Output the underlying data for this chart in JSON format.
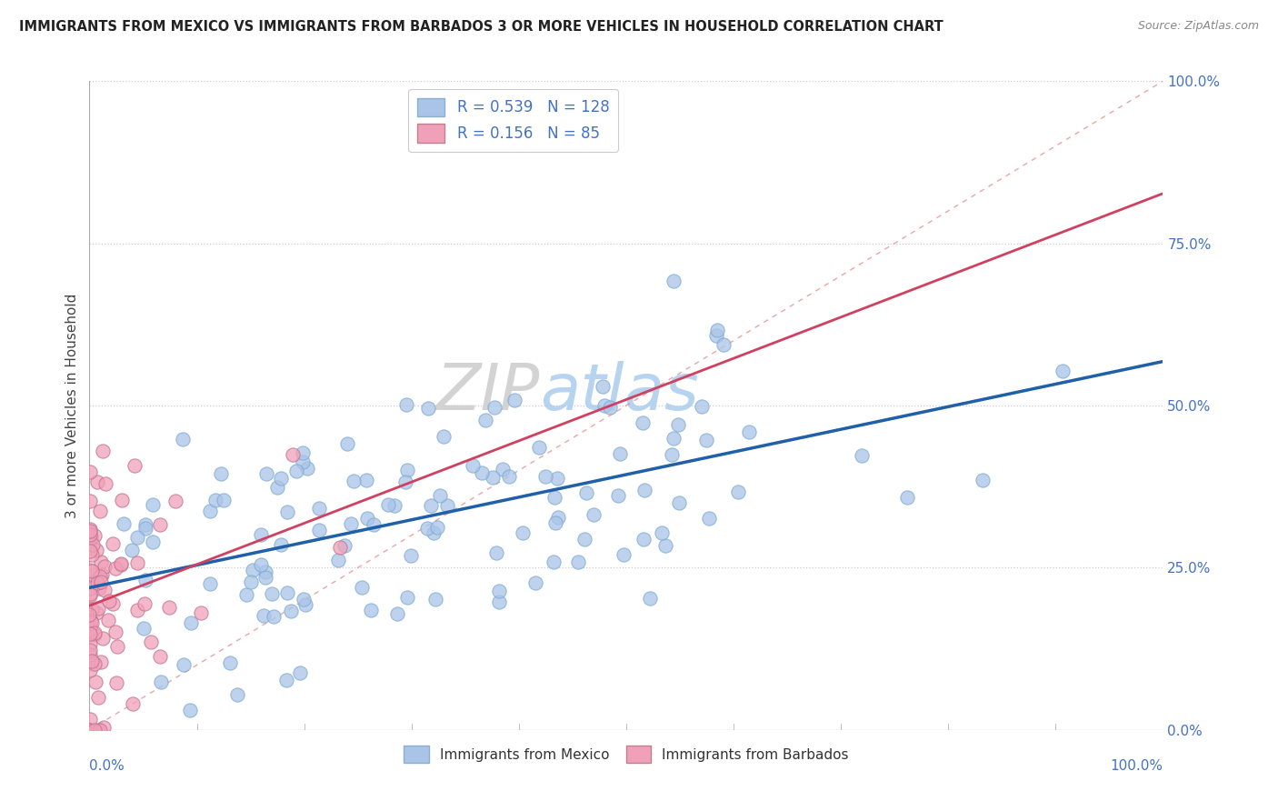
{
  "title": "IMMIGRANTS FROM MEXICO VS IMMIGRANTS FROM BARBADOS 3 OR MORE VEHICLES IN HOUSEHOLD CORRELATION CHART",
  "source": "Source: ZipAtlas.com",
  "ylabel": "3 or more Vehicles in Household",
  "ylabel_right_ticks": [
    "0.0%",
    "25.0%",
    "50.0%",
    "75.0%",
    "100.0%"
  ],
  "ylabel_right_vals": [
    0.0,
    0.25,
    0.5,
    0.75,
    1.0
  ],
  "R_mexico": 0.539,
  "N_mexico": 128,
  "R_barbados": 0.156,
  "N_barbados": 85,
  "color_mexico": "#aac4e8",
  "color_barbados": "#f0a0b8",
  "color_line_mexico": "#2060a8",
  "color_line_barbados": "#d04060",
  "color_diag": "#e08080",
  "background_color": "#ffffff",
  "xlim": [
    0.0,
    1.0
  ],
  "ylim": [
    0.0,
    1.0
  ],
  "watermark_zip_color": "#cccccc",
  "watermark_atlas_color": "#aaccee"
}
